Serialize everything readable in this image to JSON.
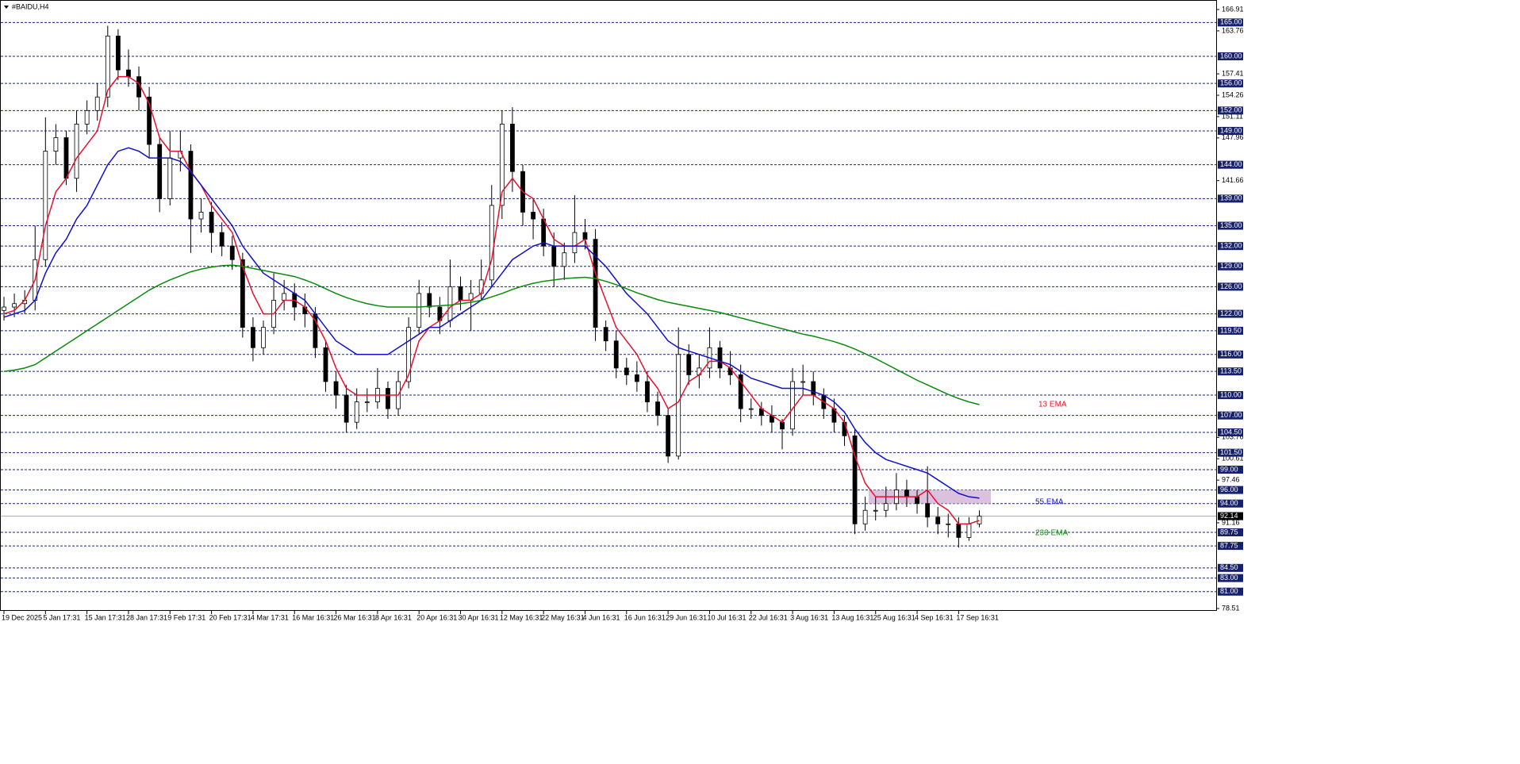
{
  "chart_data": {
    "type": "candlestick",
    "title": "#BAIDU,H4",
    "categories": [
      "19 Dec 2025",
      null,
      null,
      null,
      "5 Jan 17:31",
      null,
      null,
      null,
      "15 Jan 17:31",
      null,
      null,
      null,
      "28 Jan 17:31",
      null,
      null,
      null,
      "9 Feb 17:31",
      null,
      null,
      null,
      "20 Feb 17:31",
      null,
      null,
      null,
      "4 Mar 17:31",
      null,
      null,
      null,
      "16 Mar 16:31",
      null,
      null,
      null,
      "26 Mar 16:31",
      null,
      null,
      null,
      "8 Apr 16:31",
      null,
      null,
      null,
      "20 Apr 16:31",
      null,
      null,
      null,
      "30 Apr 16:31",
      null,
      null,
      null,
      "12 May 16:31",
      null,
      null,
      null,
      "22 May 16:31",
      null,
      null,
      null,
      "4 Jun 16:31",
      null,
      null,
      null,
      "16 Jun 16:31",
      null,
      null,
      null,
      "29 Jun 16:31",
      null,
      null,
      null,
      "10 Jul 16:31",
      null,
      null,
      null,
      "22 Jul 16:31",
      null,
      null,
      null,
      "3 Aug 16:31",
      null,
      null,
      null,
      "13 Aug 16:31",
      null,
      null,
      null,
      "25 Aug 16:31",
      null,
      null,
      null,
      "4 Sep 16:31",
      null,
      null,
      null,
      "17 Sep 16:31",
      null,
      null
    ],
    "open": [
      122.5,
      123,
      123.5,
      124,
      130,
      146,
      148,
      142,
      150,
      152,
      154,
      163,
      158,
      157,
      154,
      147,
      139,
      145,
      146,
      136,
      137,
      134,
      132,
      130,
      120,
      117,
      120,
      124,
      125,
      123,
      122,
      117,
      112,
      110,
      106,
      109,
      109,
      111,
      108,
      112,
      120,
      125,
      123,
      121,
      126,
      124,
      125,
      127,
      138,
      150,
      143,
      137,
      136,
      132,
      129,
      131,
      134,
      133,
      120,
      118,
      114,
      113,
      112,
      109,
      107,
      101,
      116,
      113,
      114,
      117,
      114,
      113,
      108,
      108,
      107,
      106,
      105,
      112,
      112,
      110,
      108,
      106,
      104,
      91,
      93,
      93,
      94,
      96,
      95,
      94,
      92,
      91,
      91,
      89,
      91
    ],
    "high": [
      124.5,
      125,
      125.5,
      135,
      151,
      150,
      149,
      152,
      153.5,
      156,
      164.5,
      164,
      161,
      158.5,
      155.5,
      148,
      149,
      149,
      147,
      139,
      138.5,
      135.5,
      133.5,
      131,
      121.5,
      121,
      128,
      127,
      126.5,
      125,
      123,
      118,
      113.5,
      111.5,
      111,
      111,
      114,
      112,
      113.5,
      121.5,
      127,
      126,
      124.5,
      130,
      127.5,
      127,
      130,
      141,
      152,
      152.5,
      144,
      139,
      137.5,
      134,
      132.5,
      139.5,
      136,
      134.5,
      121,
      119.5,
      115.5,
      115,
      113.5,
      110.5,
      108,
      120,
      117.5,
      116,
      120,
      118,
      116.5,
      114.5,
      109.5,
      109,
      108.5,
      106.5,
      114,
      114.5,
      113.5,
      111,
      109.5,
      107,
      105,
      95,
      95,
      96.5,
      98.5,
      97.5,
      96,
      99.5,
      93.5,
      92.5,
      92,
      92,
      93
    ],
    "low": [
      121,
      121.5,
      122,
      122.5,
      129,
      144,
      141,
      140,
      148.5,
      150.5,
      152.5,
      156.5,
      155.5,
      152,
      145,
      137,
      138,
      143,
      131,
      134,
      131,
      130.5,
      128.5,
      118.5,
      115,
      116,
      119,
      122.5,
      121,
      120,
      115.5,
      110.5,
      108,
      104.5,
      105,
      107.5,
      108,
      106.5,
      107,
      111,
      119,
      121.5,
      119,
      120,
      122.5,
      119.5,
      124,
      126,
      136,
      140,
      135,
      133,
      130.5,
      126,
      127,
      129.5,
      131.5,
      118,
      116.5,
      112.5,
      111.5,
      110.5,
      107.5,
      105.5,
      100,
      100.5,
      111.5,
      111,
      112.5,
      112.5,
      111.5,
      106,
      106.5,
      105.5,
      104.5,
      102,
      104,
      110,
      108.5,
      106.5,
      104.5,
      102.5,
      89.5,
      90,
      91.5,
      92,
      93,
      93.5,
      92.5,
      90.5,
      89.5,
      89,
      87.5,
      88.5,
      90.5
    ],
    "close": [
      123,
      123.5,
      124,
      130,
      146,
      148,
      142,
      150,
      152,
      154,
      163,
      158,
      157,
      154,
      147,
      139,
      145,
      146,
      136,
      137,
      134,
      132,
      130,
      120,
      117,
      120,
      124,
      125,
      123,
      122,
      117,
      112,
      110,
      106,
      109,
      109,
      111,
      108,
      112,
      120,
      125,
      123,
      121,
      126,
      124,
      125,
      127,
      138,
      150,
      143,
      137,
      136,
      132,
      129,
      131,
      134,
      133,
      120,
      118,
      114,
      113,
      112,
      109,
      107,
      101,
      116,
      113,
      114,
      117,
      114,
      113,
      108,
      108,
      107,
      106,
      105,
      112,
      112,
      110,
      108,
      106,
      104,
      91,
      93,
      93,
      94,
      96,
      95,
      94,
      92,
      91,
      91,
      89,
      91,
      92.14
    ],
    "series": [
      {
        "name": "13 EMA",
        "color": "#e8112d",
        "values": [
          122,
          122.5,
          124,
          127,
          135,
          140,
          142,
          145,
          147,
          149,
          155,
          157,
          157,
          156,
          153,
          148,
          146,
          146,
          143,
          141,
          138,
          136,
          134,
          129,
          125,
          122,
          122,
          124,
          124,
          123,
          121,
          118,
          114,
          111,
          110,
          110,
          110,
          110,
          110,
          113,
          118,
          120,
          121,
          123,
          124,
          124,
          125,
          130,
          140,
          142,
          140,
          139,
          136,
          133,
          132,
          132,
          133,
          128,
          124,
          120,
          118,
          116,
          113,
          111,
          108,
          109,
          112,
          113,
          115,
          115,
          114,
          112,
          110,
          108,
          107,
          106,
          108,
          110,
          110,
          109,
          108,
          106,
          101,
          97,
          95,
          95,
          95,
          95,
          95,
          96,
          94,
          93,
          91,
          91,
          91.5
        ]
      },
      {
        "name": "55 EMA",
        "color": "#1111cc",
        "values": [
          121.5,
          122,
          122.5,
          124,
          128,
          131,
          133,
          136,
          138,
          141,
          144,
          146,
          146.5,
          146,
          145,
          145,
          145,
          144.5,
          143,
          141,
          139,
          137,
          135,
          132,
          130,
          128,
          127,
          126,
          125,
          124,
          122,
          120,
          118,
          117,
          116,
          116,
          116,
          116,
          117,
          118,
          119,
          120,
          120,
          121,
          122,
          123,
          124,
          126,
          128,
          130,
          131,
          132,
          132.5,
          132,
          132,
          132,
          132,
          130.5,
          129,
          127,
          125,
          123.5,
          122,
          120,
          118,
          117,
          116.5,
          116,
          115.5,
          115,
          114.5,
          113.5,
          112.5,
          112,
          111.5,
          111,
          111,
          111,
          110.5,
          110,
          109,
          107.5,
          105,
          103,
          101.5,
          100.5,
          100,
          99.5,
          99,
          98.5,
          97.5,
          96.5,
          95.5,
          95,
          94.8
        ]
      },
      {
        "name": "233 EMA",
        "color": "#0a8a0a",
        "values": [
          113.5,
          113.7,
          114,
          114.5,
          115.5,
          116.5,
          117.5,
          118.5,
          119.5,
          120.5,
          121.5,
          122.5,
          123.5,
          124.5,
          125.5,
          126.3,
          127,
          127.6,
          128.2,
          128.6,
          128.9,
          129.1,
          129.2,
          129,
          128.7,
          128.4,
          128.1,
          127.8,
          127.5,
          127,
          126.4,
          125.7,
          125,
          124.4,
          123.9,
          123.5,
          123.2,
          123,
          123,
          123,
          123,
          123.1,
          123.2,
          123.3,
          123.5,
          123.7,
          124,
          124.5,
          125,
          125.6,
          126.1,
          126.5,
          126.8,
          127,
          127.2,
          127.3,
          127.4,
          127.2,
          126.8,
          126.3,
          125.7,
          125.1,
          124.6,
          124.1,
          123.7,
          123.4,
          123.1,
          122.8,
          122.5,
          122.2,
          121.8,
          121.4,
          121,
          120.6,
          120.2,
          119.8,
          119.4,
          119,
          118.7,
          118.3,
          117.9,
          117.4,
          116.8,
          116.1,
          115.4,
          114.6,
          113.8,
          113,
          112.2,
          111.5,
          110.8,
          110.1,
          109.5,
          109,
          108.6
        ]
      }
    ],
    "ylim": [
      78.51,
      166.91
    ],
    "yticks": [
      166.91,
      163.76,
      157.41,
      154.26,
      151.11,
      147.96,
      141.66,
      103.76,
      100.61,
      97.46,
      91.16,
      78.51
    ],
    "levels": [
      {
        "value": 165,
        "label": "165.00"
      },
      {
        "value": 160,
        "label": "160.00"
      },
      {
        "value": 156,
        "label": "156.00"
      },
      {
        "value": 152,
        "label": "152.00"
      },
      {
        "value": 149,
        "label": "149.00"
      },
      {
        "value": 144,
        "label": "144.00"
      },
      {
        "value": 139,
        "label": "139.00"
      },
      {
        "value": 135,
        "label": "135.00"
      },
      {
        "value": 132,
        "label": "132.00"
      },
      {
        "value": 129,
        "label": "129.00"
      },
      {
        "value": 126,
        "label": "126.00"
      },
      {
        "value": 122,
        "label": "122.00"
      },
      {
        "value": 119.5,
        "label": "119.50"
      },
      {
        "value": 116,
        "label": "116.00"
      },
      {
        "value": 113.5,
        "label": "113.50"
      },
      {
        "value": 110,
        "label": "110.00"
      },
      {
        "value": 107,
        "label": "107.00"
      },
      {
        "value": 104.5,
        "label": "104.50"
      },
      {
        "value": 101.5,
        "label": "101.50"
      },
      {
        "value": 99,
        "label": "99.00"
      },
      {
        "value": 96,
        "label": "96.00"
      },
      {
        "value": 94,
        "label": "94.00"
      },
      {
        "value": 89.75,
        "label": "89.75"
      },
      {
        "value": 87.75,
        "label": "87.75"
      },
      {
        "value": 84.5,
        "label": "84.50"
      },
      {
        "value": 83,
        "label": "83.00"
      },
      {
        "value": 81,
        "label": "81.00"
      }
    ],
    "current_price": 92.14,
    "zone": [
      94,
      96
    ],
    "zone_color": "#d6b6d8"
  }
}
